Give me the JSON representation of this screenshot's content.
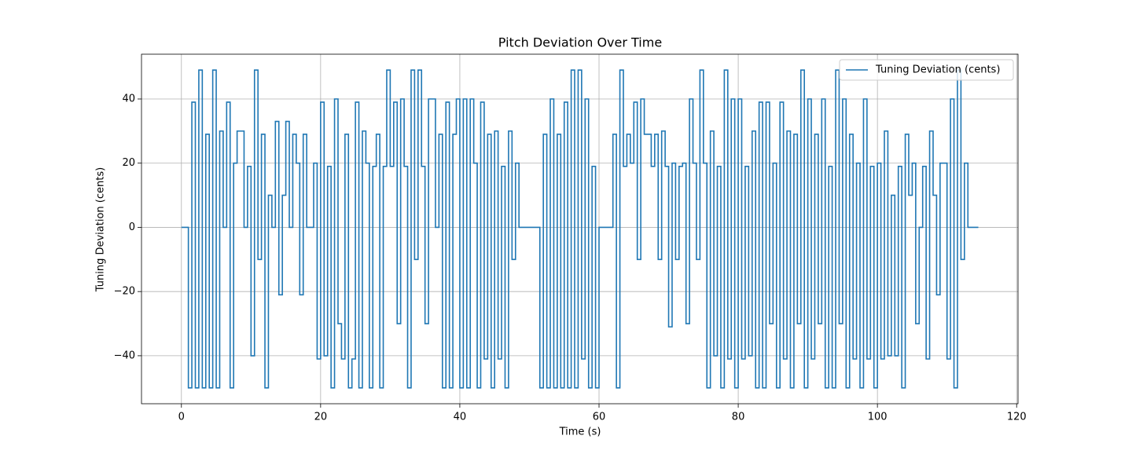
{
  "chart_data": {
    "type": "line",
    "title": "Pitch Deviation Over Time",
    "xlabel": "Time (s)",
    "ylabel": "Tuning Deviation (cents)",
    "drawstyle": "steps",
    "grid": true,
    "legend": "upper right",
    "xlim": [
      -5.735,
      120.2
    ],
    "ylim": [
      -54.95,
      53.95
    ],
    "xticks": [
      0,
      20,
      40,
      60,
      80,
      100,
      120
    ],
    "yticks": [
      {
        "value": -40,
        "label": "−40"
      },
      {
        "value": -20,
        "label": "−20"
      },
      0,
      20,
      40
    ],
    "x": [
      0,
      0.5,
      1,
      1.5,
      2,
      2.5,
      3,
      3.5,
      4,
      4.5,
      5,
      5.5,
      6,
      6.5,
      7,
      7.5,
      8,
      8.5,
      9,
      9.5,
      10,
      10.5,
      11,
      11.5,
      12,
      12.5,
      13,
      13.5,
      14,
      14.5,
      15,
      15.5,
      16,
      16.5,
      17,
      17.5,
      18,
      18.5,
      19,
      19.5,
      20,
      20.5,
      21,
      21.5,
      22,
      22.5,
      23,
      23.5,
      24,
      24.5,
      25,
      25.5,
      26,
      26.5,
      27,
      27.5,
      28,
      28.5,
      29,
      29.5,
      30,
      30.5,
      31,
      31.5,
      32,
      32.5,
      33,
      33.5,
      34,
      34.5,
      35,
      35.5,
      36,
      36.5,
      37,
      37.5,
      38,
      38.5,
      39,
      39.5,
      40,
      40.5,
      41,
      41.5,
      42,
      42.5,
      43,
      43.5,
      44,
      44.5,
      45,
      45.5,
      46,
      46.5,
      47,
      47.5,
      48,
      48.5,
      49,
      49.5,
      50,
      50.5,
      51,
      51.5,
      52,
      52.5,
      53,
      53.5,
      54,
      54.5,
      55,
      55.5,
      56,
      56.5,
      57,
      57.5,
      58,
      58.5,
      59,
      59.5,
      60,
      60.5,
      61,
      61.5,
      62,
      62.5,
      63,
      63.5,
      64,
      64.5,
      65,
      65.5,
      66,
      66.5,
      67,
      67.5,
      68,
      68.5,
      69,
      69.5,
      70,
      70.5,
      71,
      71.5,
      72,
      72.5,
      73,
      73.5,
      74,
      74.5,
      75,
      75.5,
      76,
      76.5,
      77,
      77.5,
      78,
      78.5,
      79,
      79.5,
      80,
      80.5,
      81,
      81.5,
      82,
      82.5,
      83,
      83.5,
      84,
      84.5,
      85,
      85.5,
      86,
      86.5,
      87,
      87.5,
      88,
      88.5,
      89,
      89.5,
      90,
      90.5,
      91,
      91.5,
      92,
      92.5,
      93,
      93.5,
      94,
      94.5,
      95,
      95.5,
      96,
      96.5,
      97,
      97.5,
      98,
      98.5,
      99,
      99.5,
      100,
      100.5,
      101,
      101.5,
      102,
      102.5,
      103,
      103.5,
      104,
      104.5,
      105,
      105.5,
      106,
      106.5,
      107,
      107.5,
      108,
      108.5,
      109,
      109.5,
      110,
      110.5,
      111,
      111.5,
      112,
      112.5,
      113,
      113.5,
      114,
      114.5
    ],
    "series": [
      {
        "name": "Tuning Deviation (cents)",
        "color": "#1f77b4",
        "values": [
          0,
          0,
          -50,
          39,
          -50,
          49,
          -50,
          29,
          -50,
          49,
          -50,
          30,
          0,
          39,
          -50,
          20,
          30,
          30,
          0,
          19,
          -40,
          49,
          -10,
          29,
          -50,
          10,
          0,
          33,
          -21,
          10,
          33,
          0,
          29,
          20,
          -21,
          29,
          0,
          0,
          20,
          -41,
          39,
          -40,
          19,
          -50,
          40,
          -30,
          -41,
          29,
          -50,
          -41,
          39,
          -50,
          30,
          20,
          -50,
          19,
          29,
          -50,
          19,
          49,
          19,
          39,
          -30,
          40,
          19,
          -50,
          49,
          -10,
          49,
          19,
          -30,
          40,
          40,
          0,
          29,
          -50,
          39,
          -50,
          29,
          40,
          -50,
          40,
          -50,
          40,
          20,
          -50,
          39,
          -41,
          29,
          -50,
          30,
          -41,
          19,
          -50,
          30,
          -10,
          20,
          0,
          0,
          0,
          0,
          0,
          0,
          -50,
          29,
          -50,
          40,
          -50,
          29,
          -50,
          39,
          -50,
          49,
          -50,
          49,
          -41,
          40,
          -50,
          19,
          -50,
          0,
          0,
          0,
          0,
          29,
          -50,
          49,
          19,
          29,
          20,
          39,
          -10,
          40,
          29,
          29,
          19,
          29,
          -10,
          30,
          19,
          -31,
          20,
          -10,
          19,
          20,
          -30,
          40,
          20,
          -10,
          49,
          20,
          -50,
          30,
          -40,
          19,
          -50,
          49,
          -41,
          40,
          -50,
          40,
          -41,
          19,
          -40,
          30,
          -50,
          39,
          -50,
          39,
          -30,
          20,
          -50,
          39,
          -41,
          30,
          -50,
          29,
          -30,
          49,
          -50,
          40,
          -41,
          29,
          -30,
          40,
          -50,
          19,
          -50,
          49,
          -30,
          40,
          -50,
          29,
          -41,
          20,
          -50,
          40,
          -41,
          19,
          -50,
          20,
          -41,
          30,
          -40,
          10,
          -40,
          19,
          -50,
          29,
          10,
          20,
          -30,
          0,
          19,
          -41,
          30,
          10,
          -21,
          20,
          20,
          -41,
          40,
          -50,
          49,
          -10,
          20,
          0,
          0,
          0,
          0
        ]
      }
    ]
  }
}
